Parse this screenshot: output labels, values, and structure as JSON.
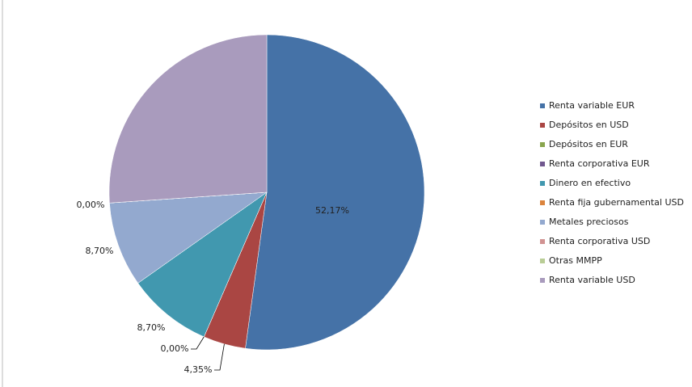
{
  "chart_data": {
    "type": "pie",
    "categories": [
      "Renta variable EUR",
      "Depósitos en USD",
      "Depósitos en EUR",
      "Renta corporativa EUR",
      "Dinero en efectivo",
      "Renta fija gubernamental USD",
      "Metales preciosos",
      "Renta corporativa USD",
      "Otras MMPP",
      "Renta variable USD"
    ],
    "values": [
      52.17,
      4.35,
      0,
      0,
      8.7,
      0,
      8.7,
      0,
      0,
      26.08
    ],
    "value_labels": [
      "52,17%",
      "4,35%",
      "0,00%",
      null,
      "8,70%",
      null,
      "8,70%",
      "0,00%",
      null,
      null
    ],
    "colors": [
      "#4572a7",
      "#aa4643",
      "#89a54e",
      "#71588f",
      "#4198af",
      "#db843d",
      "#93a9cf",
      "#d19392",
      "#b9cd96",
      "#a99bbd"
    ],
    "legend": "right"
  }
}
